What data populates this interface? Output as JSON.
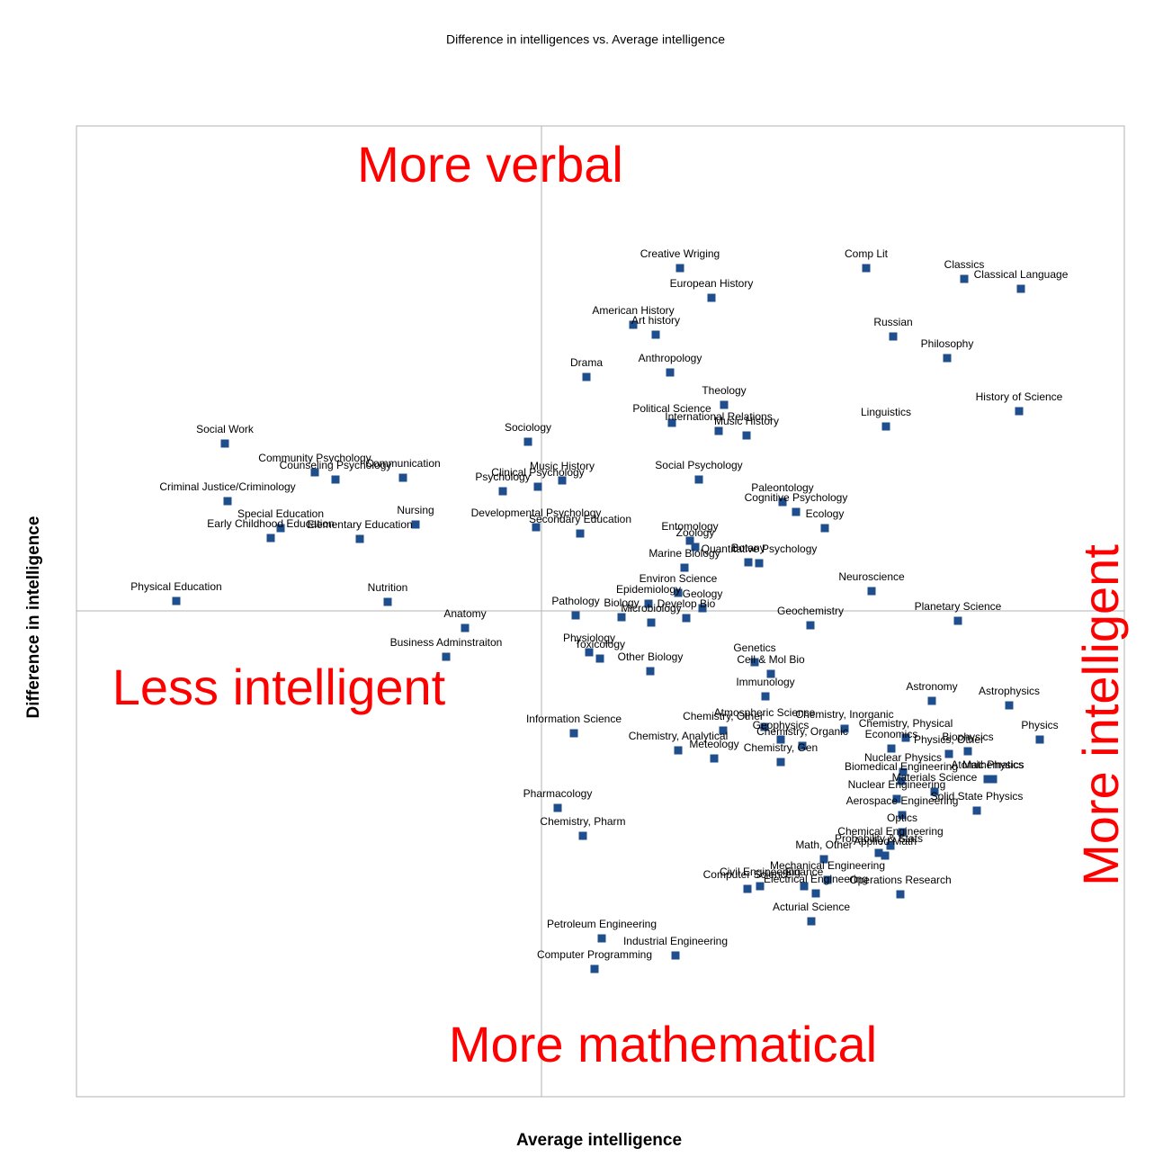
{
  "chart_data": {
    "type": "scatter",
    "title": "Difference in intelligences vs. Average intelligence",
    "x_label": "Average intelligence",
    "y_label": "Difference in intelligence",
    "annotations": [
      "More verbal",
      "Less intelligent",
      "More mathematical",
      "More intelligent"
    ],
    "color": "#1f4e8c",
    "xlim": [
      -51.7,
      64.8
    ],
    "ylim": [
      -54,
      53.9
    ],
    "labels": [
      "Creative Wriging",
      "Comp Lit",
      "Classics",
      "Classical Language",
      "European History",
      "American History",
      "Art history",
      "Russian",
      "Philosophy",
      "Drama",
      "Anthropology",
      "Theology",
      "History of Science",
      "Linguistics",
      "Political Science",
      "International Relations",
      "Music History",
      "Social Work",
      "Sociology",
      "Community Psychology",
      "Counseling Psychology",
      "Communication",
      "Clinical Psychology",
      "Psychology",
      "Music History",
      "Social Psychology",
      "Criminal Justice/Criminology",
      "Paleontology",
      "Cognitive Psychology",
      "Developmental Psychology",
      "Secondary Education",
      "Ecology",
      "Nursing",
      "Special Education",
      "Early Childhood Education",
      "Elementary Education",
      "Entomology",
      "Zoology",
      "Botany",
      "Quantitative Psychology",
      "Marine Biology",
      "Environ Science",
      "Neuroscience",
      "Physical Education",
      "Nutrition",
      "Epidemiology",
      "Geology",
      "Develop Bio",
      "Pathology",
      "Biology",
      "Microbiology",
      "Planetary Science",
      "Anatomy",
      "Geochemistry",
      "Business Adminstraiton",
      "Physiology",
      "Toxicology",
      "Other Biology",
      "Genetics",
      "Cell & Mol Bio",
      "Immunology",
      "Astronomy",
      "Astrophysics",
      "Information Science",
      "Chemistry, Other",
      "Atmospheric Science",
      "Geophysics",
      "Chemistry, Inorganic",
      "Chemistry, Physical",
      "Biophysics",
      "Physics",
      "Economics",
      "Physics, Other",
      "Chemistry, Analytical",
      "Meteology",
      "Chemistry, Organic",
      "Chemistry, Gen",
      "Nuclear Physics",
      "Atomic Physics",
      "Mathematics",
      "Biomedical Engineering",
      "Materials Science",
      "Nuclear Engineering",
      "Solid State Physics",
      "Aerospace Engineering",
      "Optics",
      "Chemical Engineering",
      "Probability & Stats",
      "Applied Math",
      "Math, Other",
      "Mechanical Engineering",
      "Civil Engineering",
      "Computer Science",
      "Finance",
      "Electrical Engineering",
      "Operations Research",
      "Acturial Science",
      "Pharmacology",
      "Chemistry, Pharm",
      "Petroleum Engineering",
      "Industrial Engineering",
      "Computer Programming"
    ],
    "x": [
      15.4,
      36.1,
      47.0,
      53.3,
      18.9,
      10.2,
      12.7,
      39.1,
      45.1,
      5.0,
      14.3,
      20.3,
      53.1,
      38.3,
      14.5,
      19.7,
      22.8,
      -35.2,
      -1.5,
      -25.2,
      -22.9,
      -15.4,
      -0.4,
      -4.3,
      2.3,
      17.5,
      -34.9,
      26.8,
      28.3,
      -0.6,
      4.3,
      31.5,
      -14.0,
      -29.0,
      -30.1,
      -20.2,
      16.5,
      17.1,
      23.0,
      24.2,
      15.9,
      15.2,
      36.7,
      -40.6,
      -17.1,
      11.9,
      17.9,
      16.1,
      3.8,
      8.9,
      12.2,
      46.3,
      -8.5,
      29.9,
      -10.6,
      5.3,
      6.5,
      12.1,
      23.7,
      25.5,
      24.9,
      43.4,
      52.0,
      3.6,
      20.2,
      24.8,
      26.6,
      33.7,
      40.5,
      47.4,
      55.4,
      38.9,
      45.3,
      15.2,
      19.2,
      29.0,
      26.6,
      40.2,
      49.6,
      50.2,
      40.0,
      43.7,
      39.5,
      48.4,
      40.1,
      40.1,
      38.8,
      37.5,
      38.2,
      31.4,
      31.8,
      24.3,
      22.9,
      29.2,
      30.5,
      39.9,
      30.0,
      1.8,
      4.6,
      6.7,
      14.9,
      5.9
    ],
    "y": [
      38.1,
      38.1,
      36.9,
      35.8,
      34.8,
      31.8,
      30.7,
      30.5,
      28.1,
      26.0,
      26.5,
      22.9,
      22.2,
      20.5,
      20.9,
      20.0,
      19.5,
      18.6,
      18.8,
      15.4,
      14.6,
      14.8,
      13.8,
      13.3,
      14.5,
      14.6,
      12.2,
      12.1,
      11.0,
      9.3,
      8.6,
      9.2,
      9.6,
      9.2,
      8.1,
      8.0,
      7.8,
      7.1,
      5.4,
      5.3,
      4.8,
      2.0,
      2.2,
      1.1,
      1.0,
      0.8,
      0.3,
      -0.8,
      -0.5,
      -0.7,
      -1.3,
      -1.1,
      -1.9,
      -1.6,
      -5.1,
      -4.6,
      -5.3,
      -6.7,
      -5.7,
      -7.0,
      -9.5,
      -10.0,
      -10.5,
      -13.6,
      -13.3,
      -12.9,
      -14.3,
      -13.1,
      -14.1,
      -15.6,
      -14.3,
      -15.3,
      -15.9,
      -15.5,
      -16.4,
      -15.0,
      -16.8,
      -17.9,
      -18.7,
      -18.7,
      -18.9,
      -20.1,
      -20.9,
      -22.2,
      -22.7,
      -24.6,
      -26.1,
      -26.9,
      -27.2,
      -27.6,
      -29.9,
      -30.6,
      -30.9,
      -30.6,
      -31.4,
      -31.5,
      -34.5,
      -21.9,
      -25.0,
      -36.4,
      -38.3,
      -39.8
    ]
  }
}
